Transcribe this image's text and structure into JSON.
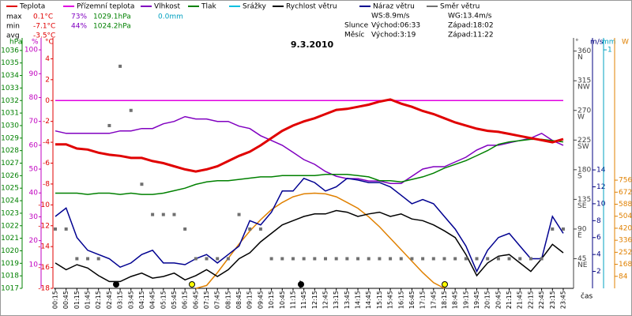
{
  "stats": [
    [
      "max",
      "0.1°C",
      "73%",
      "1029.1hPa",
      "0.0mm"
    ],
    [
      "min",
      "-7.1°C",
      "44%",
      "1024.2hPa"
    ],
    [
      "avg",
      "-3.5°C"
    ]
  ],
  "info": {
    "ws": "WS:8.9m/s",
    "wg": "WG:13.4m/s",
    "sun": "Slunce",
    "sunrise": "Východ:06:33",
    "sunset": "Západ:18:02",
    "moon": "Měsíc",
    "moonrise": "Východ:3:19",
    "moonset": "Západ:11:22"
  },
  "chart_data": {
    "type": "line",
    "title": "9.3.2010",
    "x_label": "čas",
    "categories": [
      "00:15",
      "00:45",
      "01:15",
      "01:45",
      "02:15",
      "02:45",
      "03:15",
      "03:45",
      "04:15",
      "04:45",
      "05:15",
      "05:45",
      "06:15",
      "06:45",
      "07:15",
      "07:45",
      "08:15",
      "08:45",
      "09:15",
      "09:45",
      "10:15",
      "10:45",
      "11:15",
      "11:45",
      "12:15",
      "12:45",
      "13:15",
      "13:45",
      "14:15",
      "14:45",
      "15:15",
      "15:45",
      "16:15",
      "16:45",
      "17:15",
      "17:45",
      "18:15",
      "18:45",
      "19:15",
      "19:45",
      "20:15",
      "20:45",
      "21:15",
      "21:45",
      "22:15",
      "22:45",
      "23:15",
      "23:45"
    ],
    "axes": {
      "pressure": {
        "label": "hPa",
        "color": "#008000",
        "lim": [
          1017,
          1037
        ],
        "ticks": [
          1017,
          1018,
          1019,
          1020,
          1021,
          1022,
          1023,
          1024,
          1025,
          1026,
          1027,
          1028,
          1029,
          1030,
          1031,
          1032,
          1033,
          1034,
          1035,
          1036
        ]
      },
      "humidity": {
        "label": "%",
        "color": "#c000c0",
        "lim": [
          0,
          105
        ],
        "ticks": [
          10,
          20,
          30,
          40,
          50,
          60,
          70,
          80,
          90,
          100
        ]
      },
      "temp": {
        "label": "°C",
        "color": "#e00000",
        "lim": [
          -18,
          6
        ],
        "ticks": [
          -18,
          -16,
          -14,
          -12,
          -10,
          -8,
          -6,
          -4,
          -2,
          0,
          2,
          4
        ]
      },
      "direction": {
        "label": "°",
        "color": "#404040",
        "lim": [
          0,
          380
        ],
        "ticks": [
          45,
          90,
          135,
          180,
          225,
          270,
          315,
          360
        ],
        "tick_names": [
          "NE",
          "E",
          "SE",
          "S",
          "SW",
          "W",
          "NW",
          "N"
        ]
      },
      "wind": {
        "label": "m/s",
        "color": "#000080",
        "lim": [
          0,
          29.6
        ],
        "ticks": [
          2,
          4,
          6,
          8,
          10,
          12,
          14
        ]
      },
      "precip": {
        "label": "mm",
        "color": "#00a0c0",
        "lim": [
          0,
          1.05
        ],
        "ticks": [
          1
        ]
      },
      "radiation": {
        "label": "W",
        "color": "#e08000",
        "lim": [
          0,
          1750
        ],
        "ticks": [
          84,
          168,
          252,
          336,
          420,
          504,
          588,
          672,
          756
        ]
      }
    },
    "series": [
      {
        "name": "Teplota",
        "color": "#e00000",
        "axis": "temp",
        "values": [
          -4.2,
          -4.2,
          -4.6,
          -4.7,
          -5.0,
          -5.2,
          -5.3,
          -5.5,
          -5.5,
          -5.8,
          -6.0,
          -6.3,
          -6.6,
          -6.8,
          -6.6,
          -6.3,
          -5.8,
          -5.3,
          -4.9,
          -4.3,
          -3.6,
          -2.9,
          -2.4,
          -2.0,
          -1.7,
          -1.3,
          -0.9,
          -0.8,
          -0.6,
          -0.4,
          -0.1,
          0.1,
          -0.3,
          -0.6,
          -1.0,
          -1.3,
          -1.7,
          -2.1,
          -2.4,
          -2.7,
          -2.9,
          -3.0,
          -3.2,
          -3.4,
          -3.6,
          -3.8,
          -4.0,
          -3.7
        ]
      },
      {
        "name": "Přízemní teplota",
        "color": "#e000e0",
        "axis": "temp",
        "values": [
          0,
          0,
          0,
          0,
          0,
          0,
          0,
          0,
          0,
          0,
          0,
          0,
          0,
          0,
          0,
          0,
          0,
          0,
          0,
          0,
          0,
          0,
          0,
          0,
          0,
          0,
          0,
          0,
          0,
          0,
          0,
          0,
          0,
          0,
          0,
          0,
          0,
          0,
          0,
          0,
          0,
          0,
          0,
          0,
          0,
          0,
          0,
          0
        ]
      },
      {
        "name": "Vlhkost",
        "color": "#8000c0",
        "axis": "humidity",
        "values": [
          66,
          65,
          65,
          65,
          65,
          65,
          66,
          66,
          67,
          67,
          69,
          70,
          72,
          71,
          71,
          70,
          70,
          68,
          67,
          64,
          62,
          60,
          57,
          54,
          52,
          49,
          47,
          46,
          46,
          45,
          45,
          44,
          44,
          47,
          50,
          51,
          51,
          53,
          55,
          58,
          60,
          60,
          61,
          62,
          63,
          65,
          62,
          60
        ]
      },
      {
        "name": "Tlak",
        "color": "#008000",
        "axis": "pressure",
        "values": [
          1024.6,
          1024.6,
          1024.6,
          1024.5,
          1024.6,
          1024.6,
          1024.5,
          1024.6,
          1024.5,
          1024.5,
          1024.6,
          1024.8,
          1025.0,
          1025.3,
          1025.5,
          1025.6,
          1025.6,
          1025.7,
          1025.8,
          1025.9,
          1025.9,
          1026.0,
          1026.0,
          1026.0,
          1026.0,
          1026.1,
          1026.1,
          1026.1,
          1026.0,
          1025.9,
          1025.6,
          1025.6,
          1025.5,
          1025.7,
          1025.9,
          1026.2,
          1026.6,
          1026.9,
          1027.2,
          1027.6,
          1028.0,
          1028.5,
          1028.7,
          1028.8,
          1028.9,
          1028.9,
          1028.8,
          1028.7
        ]
      },
      {
        "name": "Srážky",
        "color": "#00c0e0",
        "axis": "precip",
        "values": [
          0,
          0,
          0,
          0,
          0,
          0,
          0,
          0,
          0,
          0,
          0,
          0,
          0,
          0,
          0,
          0,
          0,
          0,
          0,
          0,
          0,
          0,
          0,
          0,
          0,
          0,
          0,
          0,
          0,
          0,
          0,
          0,
          0,
          0,
          0,
          0,
          0,
          0,
          0,
          0,
          0,
          0,
          0,
          0,
          0,
          0,
          0,
          0
        ]
      },
      {
        "name": "Rychlost větru",
        "color": "#000000",
        "axis": "wind",
        "values": [
          3.0,
          2.2,
          2.8,
          2.4,
          1.5,
          0.8,
          0.8,
          1.4,
          1.8,
          1.2,
          1.4,
          1.8,
          1.0,
          1.5,
          2.2,
          1.4,
          2.2,
          3.5,
          4.2,
          5.5,
          6.5,
          7.5,
          8.0,
          8.5,
          8.8,
          8.8,
          9.2,
          9.0,
          8.5,
          8.8,
          9.0,
          8.5,
          8.8,
          8.2,
          8.0,
          7.5,
          6.8,
          6.0,
          4.0,
          1.5,
          3.0,
          3.8,
          4.0,
          3.0,
          2.0,
          3.5,
          5.2,
          4.2
        ]
      },
      {
        "name": "Náraz větru",
        "color": "#000090",
        "axis": "wind",
        "values": [
          8.5,
          9.5,
          6.0,
          4.5,
          4.0,
          3.5,
          2.5,
          3.0,
          4.0,
          4.5,
          3.0,
          3.0,
          2.8,
          3.5,
          4.0,
          3.0,
          4.0,
          5.0,
          8.0,
          7.5,
          9.0,
          11.5,
          11.5,
          13.0,
          12.5,
          11.5,
          12.0,
          13.0,
          12.8,
          12.5,
          12.5,
          12.0,
          11.0,
          10.0,
          10.5,
          10.0,
          8.5,
          7.0,
          5.0,
          2.0,
          4.5,
          6.0,
          6.5,
          5.0,
          3.5,
          3.5,
          8.5,
          6.5
        ]
      },
      {
        "name": "Směr větru",
        "color": "#707070",
        "axis": "direction",
        "values": [
          90,
          90,
          45,
          45,
          45,
          247,
          337,
          270,
          158,
          112,
          112,
          112,
          90,
          45,
          45,
          45,
          45,
          112,
          90,
          90,
          45,
          45,
          45,
          45,
          45,
          45,
          45,
          45,
          45,
          45,
          45,
          45,
          45,
          45,
          45,
          45,
          45,
          45,
          45,
          45,
          45,
          45,
          45,
          45,
          45,
          45,
          90,
          90
        ]
      }
    ],
    "radiation": {
      "color": "#e08000",
      "axis": "radiation",
      "values": [
        null,
        null,
        null,
        null,
        null,
        null,
        null,
        null,
        null,
        null,
        null,
        null,
        null,
        0,
        20,
        110,
        210,
        310,
        400,
        480,
        550,
        600,
        640,
        660,
        665,
        660,
        640,
        600,
        560,
        500,
        430,
        350,
        270,
        190,
        110,
        40,
        0,
        null,
        null,
        null,
        null,
        null,
        null,
        null,
        null,
        null,
        null,
        null
      ]
    }
  }
}
